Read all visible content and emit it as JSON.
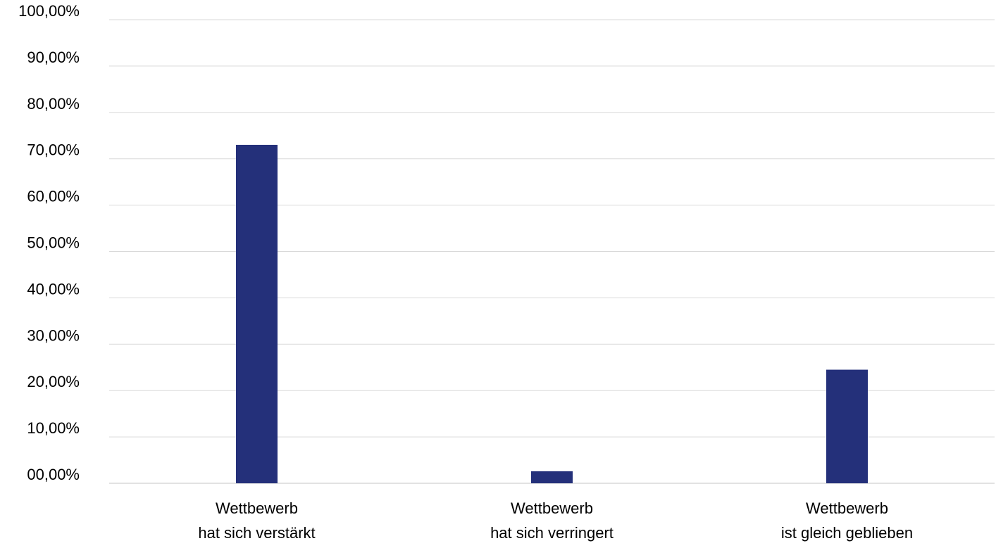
{
  "chart_data": {
    "type": "bar",
    "categories": [
      [
        "Wettbewerb",
        "hat sich verstärkt"
      ],
      [
        "Wettbewerb",
        "hat sich verringert"
      ],
      [
        "Wettbewerb",
        "ist gleich geblieben"
      ]
    ],
    "values": [
      73.0,
      2.6,
      24.5
    ],
    "y_unit": "%",
    "ylim": [
      0,
      100
    ],
    "y_ticks": [
      "00,00%",
      "10,00%",
      "20,00%",
      "30,00%",
      "40,00%",
      "50,00%",
      "60,00%",
      "70,00%",
      "80,00%",
      "90,00%",
      "100,00%"
    ],
    "title": "",
    "xlabel": "",
    "ylabel": "",
    "grid": true,
    "legend": "none",
    "bar_color": "#24307a",
    "grid_color": "#d9d9d9"
  }
}
